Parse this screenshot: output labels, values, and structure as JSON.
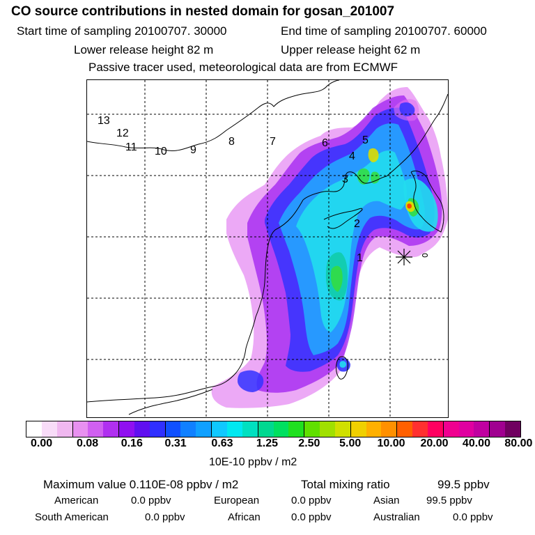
{
  "header": {
    "title": "CO  source contributions in nested domain for gosan_201007",
    "start_label": "Start time of sampling 20100707. 30000",
    "end_label": "End time of sampling 20100707. 60000",
    "lower_label": "Lower release height   82 m",
    "upper_label": "Upper release height   62 m",
    "info_line": "Passive tracer used, meteorological data are from ECMWF"
  },
  "map": {
    "region_labels": [
      "1",
      "2",
      "3",
      "4",
      "5",
      "6",
      "7",
      "8",
      "9",
      "10",
      "11",
      "12",
      "13"
    ],
    "colors": {
      "magenta": "#e070f0",
      "purple": "#a020f0",
      "blue": "#3333ff",
      "lightblue": "#22aaff",
      "cyan": "#22ddee",
      "teal": "#11ccaa",
      "green": "#33dd44",
      "yellow": "#dddd00",
      "orange": "#ff9900",
      "red": "#ff3300"
    }
  },
  "colorbar": {
    "colors": [
      "#ffffff",
      "#f8dcf8",
      "#f0b8f0",
      "#e890f0",
      "#d060f0",
      "#b030f0",
      "#9010f0",
      "#6010f0",
      "#3030ff",
      "#1050ff",
      "#1080ff",
      "#10a0ff",
      "#10c8ff",
      "#00e8f0",
      "#00e0c0",
      "#00d890",
      "#00e060",
      "#20e020",
      "#60e000",
      "#a0e000",
      "#d0e000",
      "#f0d000",
      "#ffb000",
      "#ff9000",
      "#ff6000",
      "#ff3030",
      "#ff0060",
      "#f00090",
      "#e000a0",
      "#c000a0",
      "#a00090",
      "#700060"
    ],
    "tick_labels": [
      "0.00",
      "0.08",
      "0.16",
      "0.31",
      "0.63",
      "1.25",
      "2.50",
      "5.00",
      "10.00",
      "20.00",
      "40.00",
      "80.00"
    ],
    "units": "10E-10 ppbv / m2"
  },
  "stats": {
    "max_label": "Maximum value  0.110E-08 ppbv / m2",
    "total_label": "Total mixing ratio",
    "total_value": "99.5 ppbv",
    "american_label": "American",
    "american_value": "0.0 ppbv",
    "european_label": "European",
    "european_value": "0.0 ppbv",
    "asian_label": "Asian",
    "asian_value": "99.5 ppbv",
    "south_american_label": "South American",
    "south_american_value": "0.0 ppbv",
    "african_label": "African",
    "african_value": "0.0 ppbv",
    "australian_label": "Australian",
    "australian_value": "0.0 ppbv"
  }
}
